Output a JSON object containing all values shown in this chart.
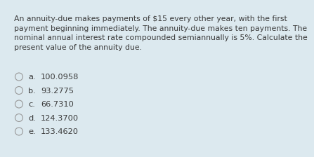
{
  "background_color": "#dce9ef",
  "question_lines": [
    "An annuity-due makes payments of $15 every other year, with the first",
    "payment beginning immediately. The annuity-due makes ten payments. The",
    "nominal annual interest rate compounded semiannually is 5%. Calculate the",
    "present value of the annuity due."
  ],
  "options": [
    {
      "label": "a.",
      "value": "100.0958"
    },
    {
      "label": "b.",
      "value": "93.2775"
    },
    {
      "label": "c.",
      "value": "66.7310"
    },
    {
      "label": "d.",
      "value": "124.3700"
    },
    {
      "label": "e.",
      "value": "133.4620"
    }
  ],
  "text_color": "#3a3a3a",
  "question_fontsize": 7.8,
  "option_fontsize": 8.2,
  "circle_color": "#999999"
}
